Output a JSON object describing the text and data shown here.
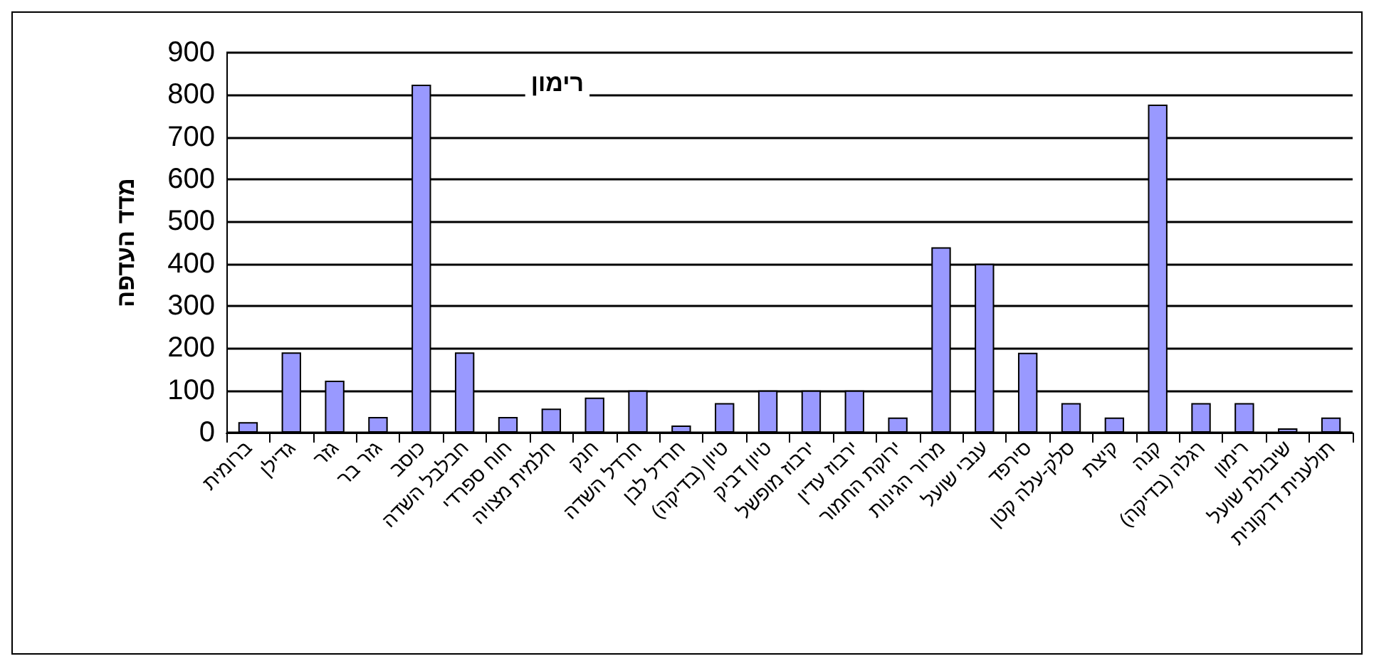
{
  "chart_data": {
    "type": "bar",
    "title": "רימון",
    "ylabel": "מדד העדפה",
    "categories": [
      "ברומית",
      "גדילן",
      "גזר",
      "גזר בר",
      "כוסב",
      "חבלבל השדה",
      "חוח ספרדי",
      "חלמית מצויה",
      "חנק",
      "חרדל השדה",
      "חרדל לבן",
      "טיון (בדיקה)",
      "טיון דביק",
      "ירבוז מופשל",
      "ירבוז עדין",
      "ירוקת החמור",
      "מרור הגינות",
      "ענבי שועל",
      "סירפד",
      "סלק-עלה קטן",
      "קיצת",
      "קנה",
      "רגלה (בדיקה)",
      "רימון",
      "שיבולת שועל",
      "תולענית דרקונית"
    ],
    "values": [
      25,
      190,
      123,
      37,
      824,
      190,
      37,
      57,
      83,
      100,
      17,
      70,
      100,
      100,
      100,
      36,
      439,
      400,
      189,
      70,
      36,
      777,
      70,
      70,
      10,
      36
    ],
    "color": "#9999ff",
    "ylim": [
      0,
      900
    ],
    "yticks": [
      0,
      100,
      200,
      300,
      400,
      500,
      600,
      700,
      800,
      900
    ],
    "grid": "y"
  }
}
